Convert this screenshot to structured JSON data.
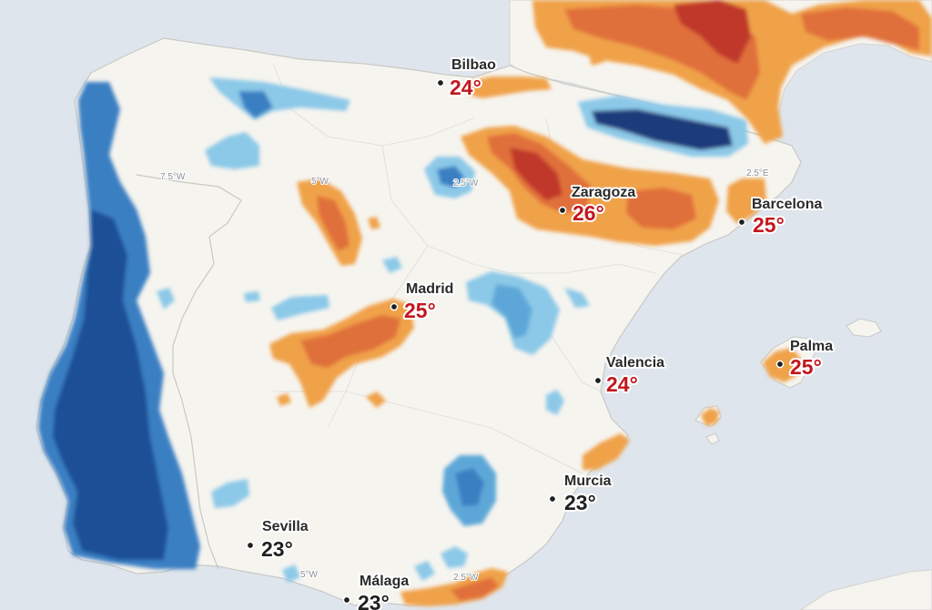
{
  "map": {
    "colors": {
      "sea": "#dfe5ec",
      "land": "#f6f4ef",
      "border": "#c9c9c6",
      "hot_text": "#c2171d",
      "normal_text": "#1f1f1f"
    },
    "grid_labels": {
      "lon_7_5w": "7.5°W",
      "lon_5w_north": "5°W",
      "lon_2_5w_north": "2.5°W",
      "lon_2_5e": "2.5°E",
      "lon_5w_south": "5°W",
      "lon_2_5w_south": "2.5°W"
    },
    "cities": [
      {
        "id": "bilbao",
        "name": "Bilbao",
        "temp": "24°",
        "anomaly": "hot"
      },
      {
        "id": "zaragoza",
        "name": "Zaragoza",
        "temp": "26°",
        "anomaly": "hot"
      },
      {
        "id": "barcelona",
        "name": "Barcelona",
        "temp": "25°",
        "anomaly": "hot"
      },
      {
        "id": "madrid",
        "name": "Madrid",
        "temp": "25°",
        "anomaly": "hot"
      },
      {
        "id": "valencia",
        "name": "Valencia",
        "temp": "24°",
        "anomaly": "hot"
      },
      {
        "id": "palma",
        "name": "Palma",
        "temp": "25°",
        "anomaly": "hot"
      },
      {
        "id": "murcia",
        "name": "Murcia",
        "temp": "23°",
        "anomaly": "normal"
      },
      {
        "id": "sevilla",
        "name": "Sevilla",
        "temp": "23°",
        "anomaly": "normal"
      },
      {
        "id": "malaga",
        "name": "Málaga",
        "temp": "23°",
        "anomaly": "normal"
      }
    ]
  }
}
